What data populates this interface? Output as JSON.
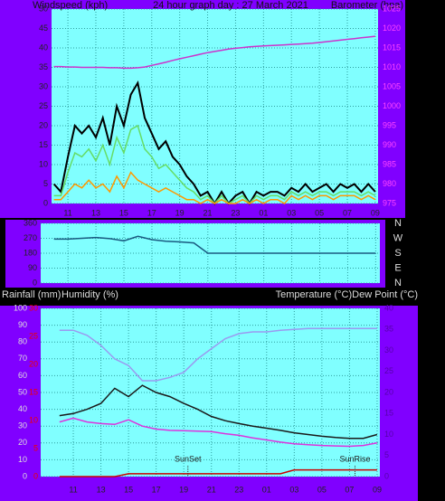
{
  "chart_data": [
    {
      "type": "line",
      "title": "24 hour graph day : 27 March 2021",
      "y_label": "Windspeed (kph)",
      "y2_label": "Barometer (hpa)",
      "x": [
        10,
        10.5,
        11,
        11.5,
        12,
        12.5,
        13,
        13.5,
        14,
        14.5,
        15,
        15.5,
        16,
        16.5,
        17,
        17.5,
        18,
        18.5,
        19,
        19.5,
        20,
        20.5,
        21,
        21.5,
        22,
        22.5,
        23,
        23.5,
        24,
        24.5,
        25,
        25.5,
        26,
        26.5,
        27,
        27.5,
        28,
        28.5,
        29,
        29.5,
        30,
        30.5,
        31,
        31.5,
        32,
        32.5,
        33
      ],
      "xlim": [
        9.83,
        33.2
      ],
      "xticks": [
        11,
        13,
        15,
        17,
        19,
        21,
        23,
        {
          "value": 25,
          "label": "01"
        },
        {
          "value": 27,
          "label": "03"
        },
        {
          "value": 29,
          "label": "05"
        },
        {
          "value": 31,
          "label": "07"
        },
        {
          "value": 33,
          "label": "09"
        }
      ],
      "ylim": [
        0,
        50
      ],
      "yticks": [
        0,
        5,
        10,
        15,
        20,
        25,
        30,
        35,
        40,
        45,
        50
      ],
      "y2lim": [
        975,
        1025
      ],
      "y2ticks": [
        975,
        980,
        985,
        990,
        995,
        1000,
        1005,
        1010,
        1015,
        1020,
        1025
      ],
      "grid": true,
      "series": [
        {
          "color": "#000000",
          "values": [
            5,
            3,
            12,
            20,
            18,
            20,
            17,
            22,
            15,
            25,
            20,
            28,
            31,
            22,
            18,
            14,
            16,
            12,
            10,
            7,
            5,
            2,
            3,
            0,
            3,
            0,
            2,
            3,
            0,
            3,
            2,
            3,
            3,
            2,
            4,
            3,
            5,
            3,
            4,
            5,
            3,
            5,
            4,
            5,
            3,
            5,
            3
          ]
        },
        {
          "color": "#66dd66",
          "values": [
            2,
            2,
            8,
            13,
            12,
            14,
            11,
            15,
            10,
            17,
            13,
            19,
            20,
            14,
            12,
            9,
            10,
            8,
            6,
            4,
            3,
            1,
            2,
            0,
            2,
            0,
            1,
            2,
            0,
            2,
            1,
            2,
            2,
            1,
            3,
            2,
            3,
            2,
            3,
            3,
            2,
            3,
            3,
            3,
            2,
            3,
            2
          ]
        },
        {
          "color": "#ff9900",
          "values": [
            1,
            1,
            3,
            5,
            4,
            6,
            4,
            5,
            3,
            7,
            4,
            8,
            6,
            5,
            4,
            3,
            4,
            3,
            2,
            1,
            1,
            0,
            1,
            0,
            1,
            0,
            0,
            1,
            0,
            1,
            0,
            1,
            1,
            0,
            2,
            1,
            2,
            1,
            2,
            2,
            1,
            2,
            2,
            2,
            1,
            2,
            1
          ]
        },
        {
          "color": "#cc33cc",
          "axis": "y2",
          "values": [
            1010.2,
            1010.2,
            1010.1,
            1010.1,
            1010,
            1010,
            1010,
            1010,
            1009.9,
            1009.9,
            1009.8,
            1009.8,
            1009.9,
            1010.1,
            1010.5,
            1010.9,
            1011.3,
            1011.8,
            1012.2,
            1012.6,
            1013,
            1013.4,
            1013.8,
            1014.1,
            1014.4,
            1014.7,
            1014.9,
            1015.1,
            1015.3,
            1015.4,
            1015.5,
            1015.6,
            1015.7,
            1015.8,
            1015.9,
            1016,
            1016.1,
            1016.2,
            1016.4,
            1016.6,
            1016.8,
            1017,
            1017.2,
            1017.4,
            1017.6,
            1017.8,
            1018
          ]
        }
      ]
    },
    {
      "type": "line",
      "x": [
        10,
        11,
        12,
        13,
        14,
        15,
        16,
        17,
        18,
        19,
        20,
        21,
        22,
        23,
        24,
        25,
        26,
        27,
        28,
        29,
        30,
        31,
        32,
        33
      ],
      "xlim": [
        9.05,
        33.3
      ],
      "ylim": [
        0,
        360
      ],
      "yticks": [
        0,
        90,
        180,
        270,
        360
      ],
      "grid": true,
      "direction_labels": [
        "N",
        "W",
        "S",
        "E",
        "N"
      ],
      "series": [
        {
          "color": "#1a5a80",
          "values": [
            265,
            265,
            270,
            275,
            268,
            255,
            282,
            262,
            252,
            248,
            242,
            180,
            180,
            180,
            180,
            180,
            180,
            180,
            180,
            180,
            180,
            180,
            180,
            180
          ]
        }
      ]
    },
    {
      "type": "line",
      "rain_label": "Rainfall (mm)",
      "y_label": "Humidity (%)",
      "y2_label": "Temperature (°C)Dew Point (°C)",
      "x": [
        10,
        11,
        12,
        13,
        14,
        15,
        16,
        17,
        18,
        19,
        20,
        21,
        22,
        23,
        24,
        25,
        26,
        27,
        28,
        29,
        30,
        31,
        32,
        33
      ],
      "xlim": [
        8.64,
        33.2
      ],
      "xticks": [
        11,
        13,
        15,
        17,
        19,
        21,
        23,
        {
          "value": 25,
          "label": "01"
        },
        {
          "value": 27,
          "label": "03"
        },
        {
          "value": 29,
          "label": "05"
        },
        {
          "value": 31,
          "label": "07"
        },
        {
          "value": 33,
          "label": "09"
        }
      ],
      "ylim": [
        0,
        100
      ],
      "yticks": [
        0,
        10,
        20,
        30,
        40,
        50,
        60,
        70,
        80,
        90,
        100
      ],
      "y2lim": [
        0,
        40
      ],
      "y2ticks": [
        0,
        5,
        10,
        15,
        20,
        25,
        30,
        35,
        40
      ],
      "y3lim": [
        0,
        30
      ],
      "y3ticks": [
        0,
        5,
        10,
        15,
        20,
        25,
        30
      ],
      "grid": true,
      "annotations": [
        {
          "text": "SunSet",
          "x": 19.3
        },
        {
          "text": "SunRise",
          "x": 31.4
        }
      ],
      "series": [
        {
          "color": "#9a9af0",
          "values": [
            87,
            87,
            84,
            78,
            70,
            66,
            57,
            57,
            59,
            62,
            70,
            76,
            82,
            85,
            86,
            86,
            87,
            87.5,
            88,
            88,
            88,
            88,
            88,
            88
          ]
        },
        {
          "color": "#1a1a1a",
          "axis": "y2",
          "values": [
            14.5,
            15,
            16,
            17.4,
            21,
            19,
            21.7,
            20,
            19,
            17.4,
            16,
            14.3,
            13.3,
            12.6,
            12,
            11.5,
            11,
            10.4,
            10,
            9.6,
            9.3,
            9.1,
            9.1,
            10
          ]
        },
        {
          "color": "#dd33dd",
          "axis": "y2",
          "values": [
            13,
            13.9,
            13,
            12.6,
            12.4,
            13.5,
            12,
            11.3,
            11,
            10.9,
            10.8,
            10.7,
            10.2,
            9.8,
            9.2,
            8.7,
            8.2,
            7.8,
            7.6,
            7.4,
            7.3,
            7.2,
            7.4,
            8
          ]
        },
        {
          "color": "#cc0000",
          "axis": "y3",
          "values": [
            0,
            0,
            0,
            0,
            0,
            0.5,
            0.5,
            0.5,
            0.5,
            0.5,
            0.5,
            0.5,
            0.5,
            0.5,
            0.5,
            0.5,
            0.5,
            1.2,
            1.2,
            1.2,
            1.2,
            1.2,
            1.2,
            1.2
          ]
        }
      ]
    }
  ]
}
